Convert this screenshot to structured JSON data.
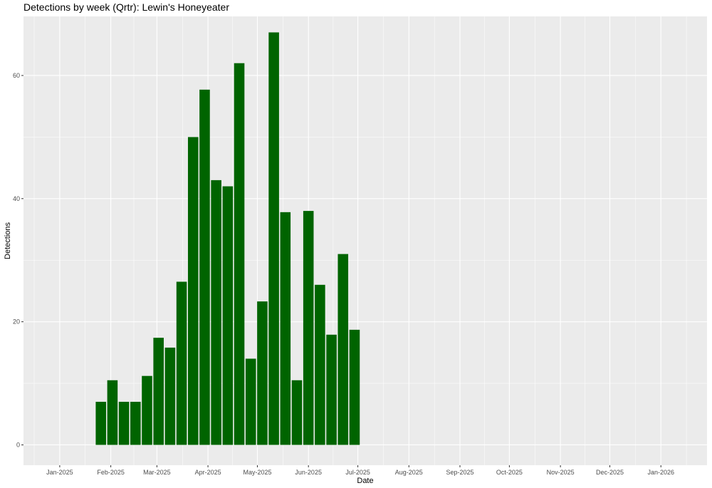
{
  "chart_data": {
    "type": "bar",
    "title": "Detections by week (Qrtr): Lewin's Honeyeater",
    "xlabel": "Date",
    "ylabel": "Detections",
    "ylim": [
      -3.3,
      69.6
    ],
    "xlim": [
      "2024-12-10",
      "2026-01-29"
    ],
    "grid": true,
    "bar_color": "#006400",
    "panel_color": "#EBEBEB",
    "grid_color": "#FFFFFF",
    "x_ticks": [
      {
        "date": "2025-01-01",
        "label": "Jan-2025"
      },
      {
        "date": "2025-02-01",
        "label": "Feb-2025"
      },
      {
        "date": "2025-03-01",
        "label": "Mar-2025"
      },
      {
        "date": "2025-04-01",
        "label": "Apr-2025"
      },
      {
        "date": "2025-05-01",
        "label": "May-2025"
      },
      {
        "date": "2025-06-01",
        "label": "Jun-2025"
      },
      {
        "date": "2025-07-01",
        "label": "Jul-2025"
      },
      {
        "date": "2025-08-01",
        "label": "Aug-2025"
      },
      {
        "date": "2025-09-01",
        "label": "Sep-2025"
      },
      {
        "date": "2025-10-01",
        "label": "Oct-2025"
      },
      {
        "date": "2025-11-01",
        "label": "Nov-2025"
      },
      {
        "date": "2025-12-01",
        "label": "Dec-2025"
      },
      {
        "date": "2026-01-01",
        "label": "Jan-2026"
      }
    ],
    "y_ticks": [
      0,
      20,
      40,
      60
    ],
    "x": [
      "2025-01-26",
      "2025-02-02",
      "2025-02-09",
      "2025-02-16",
      "2025-02-23",
      "2025-03-02",
      "2025-03-09",
      "2025-03-16",
      "2025-03-23",
      "2025-03-30",
      "2025-04-06",
      "2025-04-13",
      "2025-04-20",
      "2025-04-27",
      "2025-05-04",
      "2025-05-11",
      "2025-05-18",
      "2025-05-25",
      "2025-06-01",
      "2025-06-08",
      "2025-06-15",
      "2025-06-22",
      "2025-06-29"
    ],
    "values": [
      7,
      10.5,
      7,
      7,
      11.2,
      17.4,
      15.8,
      26.5,
      50,
      57.7,
      43,
      42,
      62,
      14,
      23.3,
      67,
      37.8,
      10.5,
      38,
      26,
      17.9,
      31,
      18.7
    ]
  }
}
